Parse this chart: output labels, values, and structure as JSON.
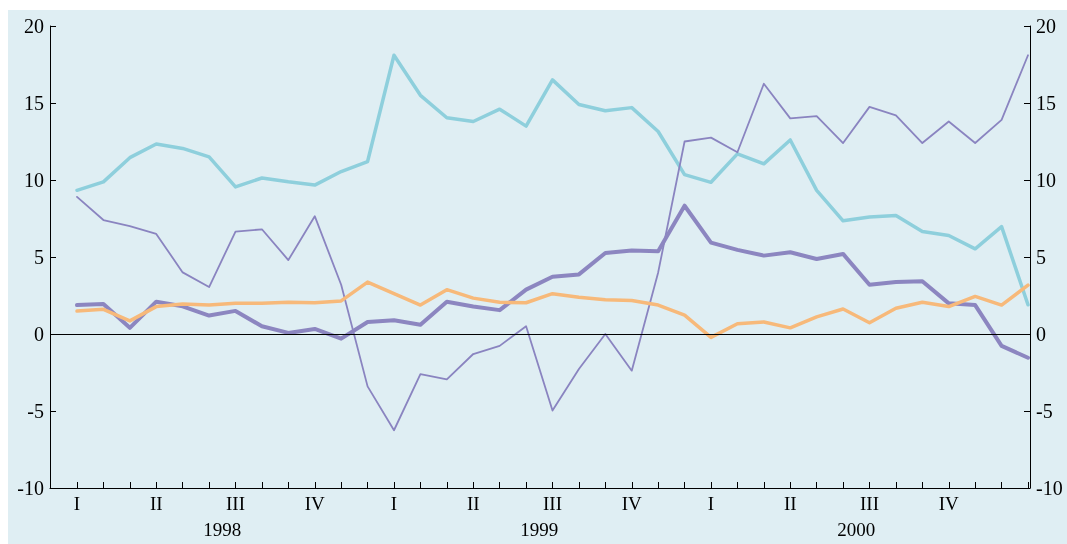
{
  "chart_data": {
    "type": "line",
    "categories": [
      "I",
      null,
      null,
      "II",
      null,
      null,
      "III",
      null,
      null,
      "IV",
      null,
      null,
      "I",
      null,
      null,
      "II",
      null,
      null,
      "III",
      null,
      null,
      "IV",
      null,
      null,
      "I",
      null,
      null,
      "II",
      null,
      null,
      "III",
      null,
      null,
      "IV",
      null,
      null,
      null
    ],
    "series": [
      {
        "color": "#8ecfdc",
        "values": [
          9.33,
          9.88,
          11.45,
          12.34,
          12.05,
          11.5,
          9.55,
          10.13,
          9.88,
          9.67,
          10.55,
          11.2,
          18.1,
          15.5,
          14.04,
          13.8,
          14.6,
          13.5,
          16.5,
          14.9,
          14.5,
          14.7,
          13.15,
          10.35,
          9.85,
          11.7,
          11.05,
          12.6,
          9.33,
          7.35,
          7.6,
          7.7,
          6.65,
          6.4,
          5.53,
          6.97,
          1.9
        ]
      },
      {
        "color": "#8a84c0",
        "values": [
          8.9,
          7.4,
          7.0,
          6.5,
          4.0,
          3.05,
          6.65,
          6.8,
          4.8,
          7.65,
          3.2,
          -3.4,
          -6.25,
          -2.6,
          -2.95,
          -1.3,
          -0.77,
          0.5,
          -4.97,
          -2.27,
          0.0,
          -2.38,
          4.0,
          12.5,
          12.75,
          11.8,
          16.25,
          14.0,
          14.15,
          12.4,
          14.75,
          14.2,
          12.4,
          13.8,
          12.4,
          13.9,
          18.1
        ]
      },
      {
        "color": "#8c86c0",
        "values": [
          1.88,
          1.95,
          0.4,
          2.1,
          1.8,
          1.2,
          1.5,
          0.5,
          0.07,
          0.33,
          -0.3,
          0.78,
          0.89,
          0.6,
          2.1,
          1.78,
          1.55,
          2.88,
          3.72,
          3.87,
          5.26,
          5.42,
          5.38,
          8.33,
          5.93,
          5.46,
          5.09,
          5.31,
          4.87,
          5.2,
          3.2,
          3.38,
          3.43,
          1.99,
          1.88,
          -0.77,
          -1.54
        ]
      },
      {
        "color": "#f7b97a",
        "values": [
          1.49,
          1.6,
          0.85,
          1.78,
          1.95,
          1.88,
          1.99,
          1.99,
          2.06,
          2.03,
          2.15,
          3.37,
          2.62,
          1.88,
          2.88,
          2.33,
          2.06,
          2.03,
          2.62,
          2.39,
          2.22,
          2.17,
          1.88,
          1.22,
          -0.22,
          0.67,
          0.78,
          0.4,
          1.11,
          1.62,
          0.73,
          1.67,
          2.06,
          1.78,
          2.44,
          1.88,
          3.17
        ]
      }
    ],
    "ylim": [
      -10,
      20
    ],
    "yticks": [
      -10,
      -5,
      0,
      5,
      10,
      15,
      20
    ],
    "y2lim": [
      -10,
      20
    ],
    "y2ticks": [
      -10,
      -5,
      0,
      5,
      10,
      15,
      20
    ],
    "ref_lines": [
      {
        "axis": "y",
        "value": 0,
        "color": "#000000"
      }
    ],
    "annotations": [
      "1998",
      "1999",
      "2000"
    ],
    "grid": false,
    "marker": "none",
    "line_style": "solid"
  }
}
